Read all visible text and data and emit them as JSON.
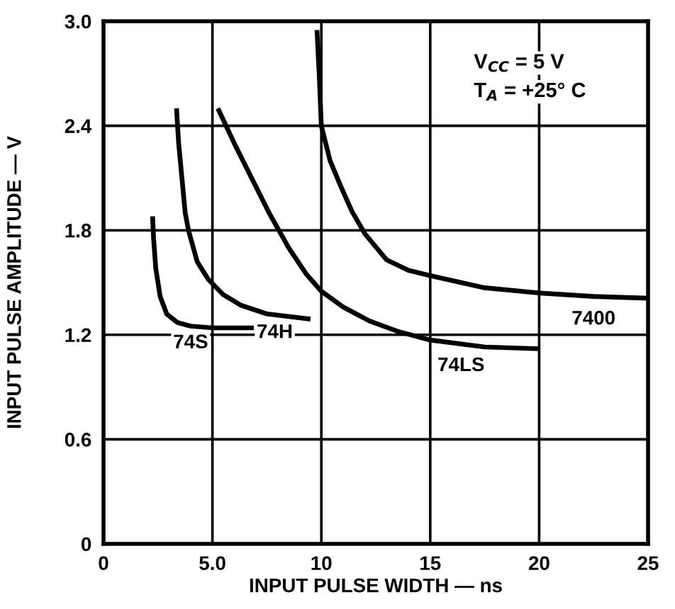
{
  "chart_data": {
    "type": "line",
    "xlabel": "INPUT PULSE WIDTH — ns",
    "ylabel": "INPUT PULSE AMPLITUDE — V",
    "xlim": [
      0,
      25
    ],
    "xticks": [
      0,
      {
        "value": 5,
        "label": "5.0"
      },
      10,
      15,
      20,
      25
    ],
    "ylim": [
      0,
      3.0
    ],
    "yticks": [
      0,
      0.6,
      1.2,
      1.8,
      2.4,
      {
        "value": 3.0,
        "label": "3.0"
      }
    ],
    "grid": true,
    "marker": "none",
    "line_style": "solid",
    "annotations": [
      "V$_{CC}$ = 5 V",
      "T$_{A}$ = +25° C"
    ],
    "series": [
      {
        "name": "74S",
        "color": "#000000",
        "x": [
          2.25,
          2.3,
          2.4,
          2.6,
          2.9,
          3.4,
          4,
          5,
          6.9
        ],
        "values": [
          1.88,
          1.75,
          1.58,
          1.42,
          1.32,
          1.27,
          1.25,
          1.24,
          1.24
        ]
      },
      {
        "name": "74H",
        "color": "#000000",
        "x": [
          3.35,
          3.45,
          3.6,
          3.75,
          3.9,
          4.3,
          4.8,
          5.5,
          6.3,
          7.5,
          9.5
        ],
        "values": [
          2.5,
          2.3,
          2.1,
          1.9,
          1.8,
          1.62,
          1.52,
          1.43,
          1.37,
          1.32,
          1.29
        ]
      },
      {
        "name": "74LS",
        "color": "#000000",
        "x": [
          5.25,
          6,
          6.8,
          7.6,
          8.5,
          9.3,
          10,
          11,
          12.2,
          13.5,
          15,
          17.5,
          20
        ],
        "values": [
          2.5,
          2.3,
          2.1,
          1.9,
          1.7,
          1.55,
          1.45,
          1.36,
          1.28,
          1.22,
          1.17,
          1.13,
          1.12
        ]
      },
      {
        "name": "7400",
        "color": "#000000",
        "x": [
          9.8,
          9.9,
          10.0,
          10.4,
          10.9,
          11.4,
          12,
          13,
          14,
          15,
          17.5,
          20,
          22.5,
          25
        ],
        "values": [
          2.95,
          2.7,
          2.4,
          2.2,
          2.05,
          1.91,
          1.78,
          1.63,
          1.57,
          1.54,
          1.47,
          1.44,
          1.42,
          1.41
        ]
      }
    ]
  }
}
